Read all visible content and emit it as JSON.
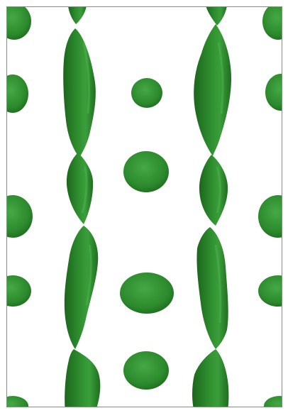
{
  "scene": {
    "subject": "isosurface-render",
    "colors": {
      "background": "#ffffff",
      "frame": "#8a8a8a",
      "surface_dark": "#1f6e1f",
      "surface_mid": "#2f8f2f",
      "surface_light": "#3fa53f",
      "highlight": "#55b855"
    }
  }
}
